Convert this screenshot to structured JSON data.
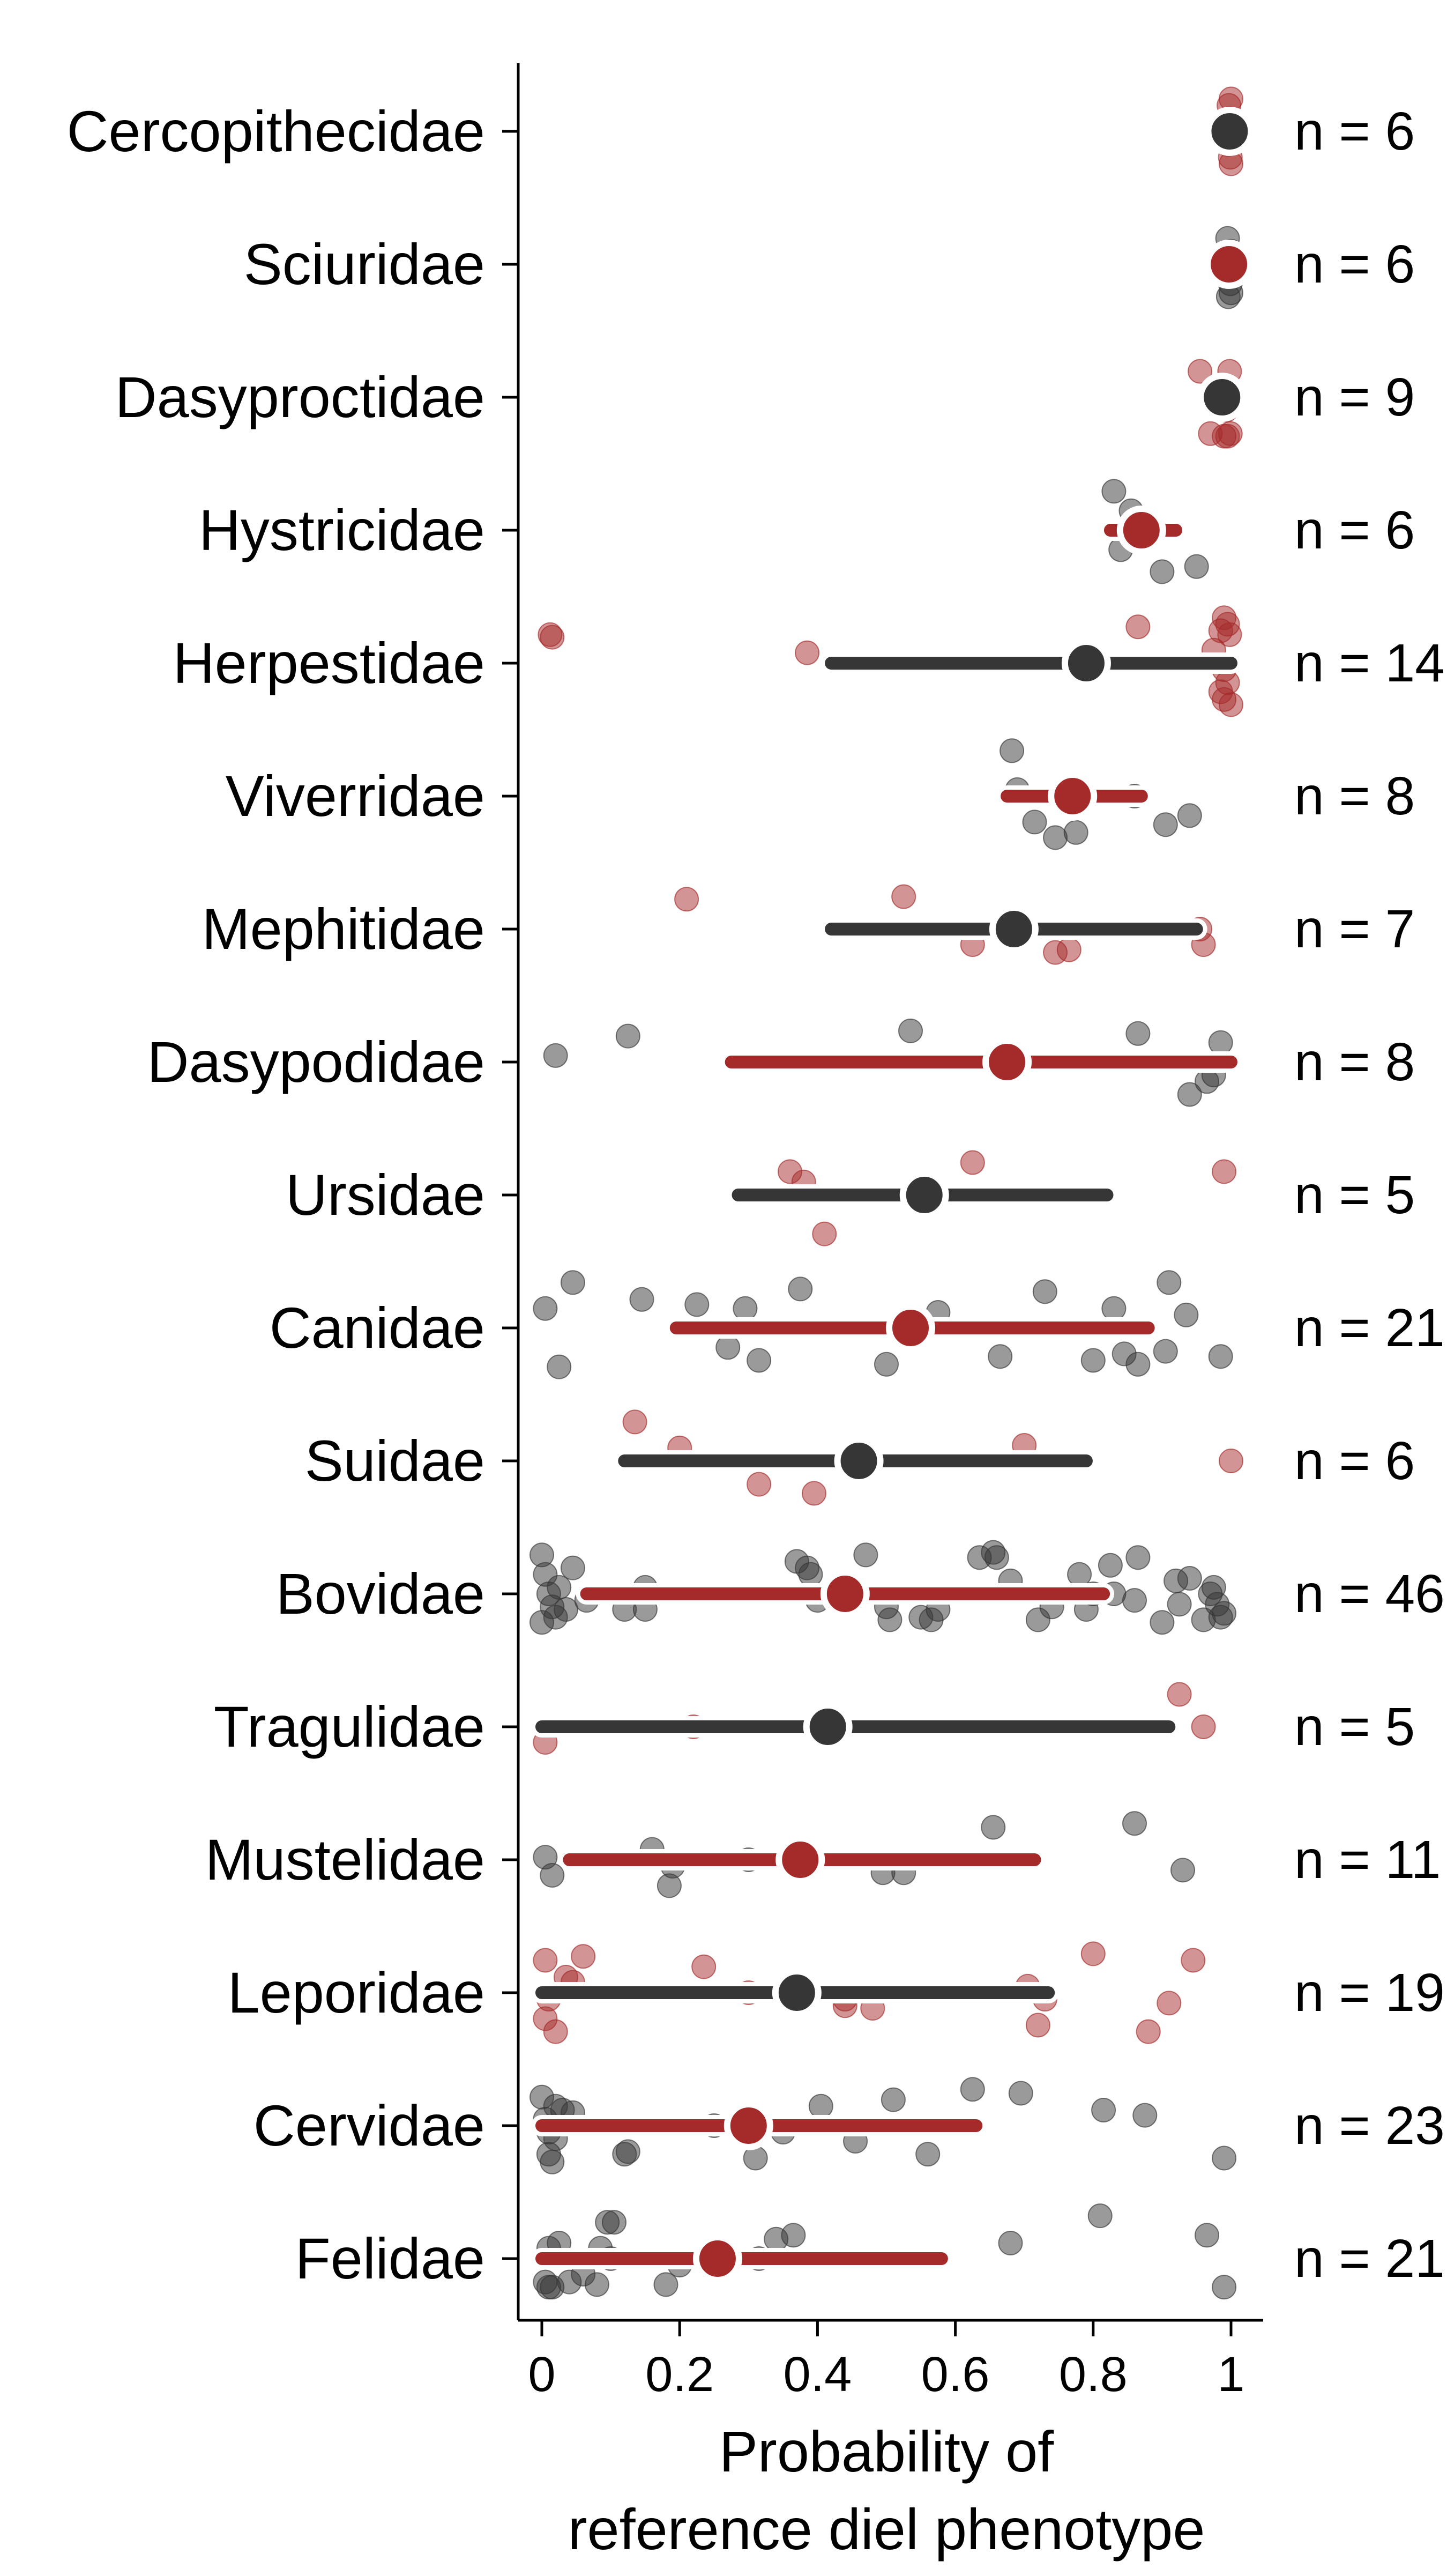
{
  "chart_data": {
    "type": "dot-interval",
    "xlabel": [
      "Probability of",
      "reference diel phenotype"
    ],
    "xlim": [
      0,
      1
    ],
    "xticks": [
      0,
      0.2,
      0.4,
      0.6,
      0.8,
      1
    ],
    "xtick_labels": [
      "0",
      "0.2",
      "0.4",
      "0.6",
      "0.8",
      "1"
    ],
    "colors": {
      "red": "#a52a2a",
      "dark": "#363636"
    },
    "rows": [
      {
        "family": "Cercopithecidae",
        "n_label": "n = 6",
        "color": "dark",
        "mean": 0.998,
        "lo": null,
        "hi": null,
        "points": [
          [
            1.0,
            -0.25
          ],
          [
            0.998,
            -0.1
          ],
          [
            0.995,
            0.1
          ],
          [
            0.999,
            0.2
          ],
          [
            1.0,
            0.25
          ],
          [
            0.997,
            -0.2
          ]
        ]
      },
      {
        "family": "Sciuridae",
        "n_label": "n = 6",
        "color": "red",
        "mean": 0.997,
        "lo": null,
        "hi": null,
        "points": [
          [
            0.995,
            -0.2
          ],
          [
            1.0,
            -0.1
          ],
          [
            0.998,
            0.05
          ],
          [
            0.999,
            0.15
          ],
          [
            1.0,
            0.22
          ],
          [
            0.996,
            0.25
          ]
        ]
      },
      {
        "family": "Dasyproctidae",
        "n_label": "n = 9",
        "color": "dark",
        "mean": 0.987,
        "lo": null,
        "hi": null,
        "points": [
          [
            0.955,
            -0.2
          ],
          [
            0.998,
            -0.2
          ],
          [
            0.975,
            -0.05
          ],
          [
            0.985,
            0.05
          ],
          [
            0.993,
            0.1
          ],
          [
            0.97,
            0.28
          ],
          [
            0.999,
            0.28
          ],
          [
            0.995,
            0.3
          ],
          [
            0.99,
            0.3
          ]
        ]
      },
      {
        "family": "Hystricidae",
        "n_label": "n = 6",
        "color": "red",
        "mean": 0.87,
        "lo": 0.825,
        "hi": 0.92,
        "points": [
          [
            0.83,
            -0.3
          ],
          [
            0.855,
            -0.15
          ],
          [
            0.84,
            0.15
          ],
          [
            0.9,
            0.32
          ],
          [
            0.95,
            0.28
          ],
          [
            0.88,
            0.0
          ]
        ]
      },
      {
        "family": "Herpestidae",
        "n_label": "n = 14",
        "color": "dark",
        "mean": 0.79,
        "lo": 0.42,
        "hi": 1.0,
        "points": [
          [
            0.012,
            -0.22
          ],
          [
            0.015,
            -0.2
          ],
          [
            0.385,
            -0.08
          ],
          [
            0.865,
            -0.28
          ],
          [
            0.99,
            -0.35
          ],
          [
            0.995,
            -0.3
          ],
          [
            0.985,
            -0.25
          ],
          [
            0.998,
            -0.22
          ],
          [
            0.975,
            -0.1
          ],
          [
            0.99,
            0.05
          ],
          [
            0.995,
            0.15
          ],
          [
            0.985,
            0.22
          ],
          [
            0.99,
            0.28
          ],
          [
            1.0,
            0.32
          ]
        ]
      },
      {
        "family": "Viverridae",
        "n_label": "n = 8",
        "color": "red",
        "mean": 0.77,
        "lo": 0.675,
        "hi": 0.87,
        "points": [
          [
            0.682,
            -0.35
          ],
          [
            0.69,
            -0.05
          ],
          [
            0.715,
            0.2
          ],
          [
            0.745,
            0.32
          ],
          [
            0.775,
            0.28
          ],
          [
            0.905,
            0.22
          ],
          [
            0.94,
            0.15
          ],
          [
            0.86,
            0.0
          ]
        ]
      },
      {
        "family": "Mephitidae",
        "n_label": "n = 7",
        "color": "dark",
        "mean": 0.685,
        "lo": 0.42,
        "hi": 0.95,
        "points": [
          [
            0.21,
            -0.23
          ],
          [
            0.525,
            -0.25
          ],
          [
            0.955,
            0.0
          ],
          [
            0.96,
            0.12
          ],
          [
            0.625,
            0.12
          ],
          [
            0.745,
            0.18
          ],
          [
            0.765,
            0.16
          ]
        ]
      },
      {
        "family": "Dasypodidae",
        "n_label": "n = 8",
        "color": "red",
        "mean": 0.675,
        "lo": 0.275,
        "hi": 1.0,
        "points": [
          [
            0.02,
            -0.05
          ],
          [
            0.125,
            -0.2
          ],
          [
            0.535,
            -0.24
          ],
          [
            0.865,
            -0.22
          ],
          [
            0.985,
            -0.15
          ],
          [
            0.975,
            0.1
          ],
          [
            0.965,
            0.15
          ],
          [
            0.94,
            0.25
          ]
        ]
      },
      {
        "family": "Ursidae",
        "n_label": "n = 5",
        "color": "dark",
        "mean": 0.555,
        "lo": 0.285,
        "hi": 0.82,
        "points": [
          [
            0.36,
            -0.18
          ],
          [
            0.38,
            -0.1
          ],
          [
            0.41,
            0.3
          ],
          [
            0.625,
            -0.25
          ],
          [
            0.99,
            -0.18
          ]
        ]
      },
      {
        "family": "Canidae",
        "n_label": "n = 21",
        "color": "red",
        "mean": 0.535,
        "lo": 0.195,
        "hi": 0.88,
        "points": [
          [
            0.005,
            -0.15
          ],
          [
            0.045,
            -0.35
          ],
          [
            0.025,
            0.3
          ],
          [
            0.145,
            -0.22
          ],
          [
            0.225,
            -0.18
          ],
          [
            0.27,
            0.15
          ],
          [
            0.295,
            -0.15
          ],
          [
            0.315,
            0.25
          ],
          [
            0.375,
            -0.3
          ],
          [
            0.5,
            0.28
          ],
          [
            0.575,
            -0.12
          ],
          [
            0.665,
            0.22
          ],
          [
            0.73,
            -0.28
          ],
          [
            0.8,
            0.25
          ],
          [
            0.83,
            -0.15
          ],
          [
            0.845,
            0.2
          ],
          [
            0.865,
            0.28
          ],
          [
            0.905,
            0.18
          ],
          [
            0.91,
            -0.35
          ],
          [
            0.935,
            -0.1
          ],
          [
            0.985,
            0.22
          ]
        ]
      },
      {
        "family": "Suidae",
        "n_label": "n = 6",
        "color": "dark",
        "mean": 0.46,
        "lo": 0.12,
        "hi": 0.79,
        "points": [
          [
            0.135,
            -0.3
          ],
          [
            0.2,
            -0.1
          ],
          [
            0.315,
            0.18
          ],
          [
            0.395,
            0.25
          ],
          [
            0.7,
            -0.12
          ],
          [
            1.0,
            0.0
          ]
        ]
      },
      {
        "family": "Bovidae",
        "n_label": "n = 46",
        "color": "red",
        "mean": 0.44,
        "lo": 0.065,
        "hi": 0.815,
        "points": [
          [
            0.0,
            -0.3
          ],
          [
            0.005,
            -0.15
          ],
          [
            0.01,
            0.0
          ],
          [
            0.015,
            0.1
          ],
          [
            0.02,
            0.18
          ],
          [
            0.0,
            0.22
          ],
          [
            0.025,
            -0.05
          ],
          [
            0.035,
            0.12
          ],
          [
            0.045,
            -0.2
          ],
          [
            0.065,
            0.05
          ],
          [
            0.12,
            0.12
          ],
          [
            0.15,
            -0.05
          ],
          [
            0.15,
            0.12
          ],
          [
            0.37,
            -0.25
          ],
          [
            0.385,
            -0.2
          ],
          [
            0.39,
            -0.15
          ],
          [
            0.4,
            0.05
          ],
          [
            0.47,
            -0.3
          ],
          [
            0.5,
            0.1
          ],
          [
            0.505,
            0.2
          ],
          [
            0.55,
            0.18
          ],
          [
            0.565,
            0.2
          ],
          [
            0.575,
            0.12
          ],
          [
            0.635,
            -0.28
          ],
          [
            0.655,
            -0.32
          ],
          [
            0.66,
            -0.28
          ],
          [
            0.68,
            -0.1
          ],
          [
            0.72,
            0.2
          ],
          [
            0.74,
            0.1
          ],
          [
            0.78,
            -0.15
          ],
          [
            0.79,
            0.12
          ],
          [
            0.8,
            0.0
          ],
          [
            0.825,
            -0.22
          ],
          [
            0.83,
            0.0
          ],
          [
            0.865,
            -0.28
          ],
          [
            0.86,
            0.05
          ],
          [
            0.9,
            0.22
          ],
          [
            0.92,
            -0.1
          ],
          [
            0.925,
            0.08
          ],
          [
            0.94,
            -0.12
          ],
          [
            0.97,
            0.0
          ],
          [
            0.98,
            0.08
          ],
          [
            0.99,
            0.15
          ],
          [
            0.975,
            -0.05
          ],
          [
            0.96,
            0.2
          ],
          [
            0.985,
            0.18
          ]
        ]
      },
      {
        "family": "Tragulidae",
        "n_label": "n = 5",
        "color": "dark",
        "mean": 0.415,
        "lo": 0.0,
        "hi": 0.91,
        "points": [
          [
            0.005,
            0.12
          ],
          [
            0.22,
            0.0
          ],
          [
            0.4,
            -0.05
          ],
          [
            0.925,
            -0.25
          ],
          [
            0.96,
            0.0
          ]
        ]
      },
      {
        "family": "Mustelidae",
        "n_label": "n = 11",
        "color": "red",
        "mean": 0.375,
        "lo": 0.04,
        "hi": 0.715,
        "points": [
          [
            0.005,
            -0.02
          ],
          [
            0.015,
            0.12
          ],
          [
            0.16,
            -0.08
          ],
          [
            0.185,
            0.2
          ],
          [
            0.19,
            0.05
          ],
          [
            0.495,
            0.1
          ],
          [
            0.525,
            0.1
          ],
          [
            0.655,
            -0.25
          ],
          [
            0.86,
            -0.28
          ],
          [
            0.93,
            0.08
          ],
          [
            0.3,
            0.0
          ]
        ]
      },
      {
        "family": "Leporidae",
        "n_label": "n = 19",
        "color": "dark",
        "mean": 0.37,
        "lo": 0.0,
        "hi": 0.735,
        "points": [
          [
            0.005,
            -0.25
          ],
          [
            0.01,
            0.05
          ],
          [
            0.005,
            0.2
          ],
          [
            0.02,
            0.3
          ],
          [
            0.035,
            -0.12
          ],
          [
            0.045,
            -0.08
          ],
          [
            0.06,
            -0.28
          ],
          [
            0.235,
            -0.2
          ],
          [
            0.44,
            0.05
          ],
          [
            0.44,
            0.1
          ],
          [
            0.48,
            0.12
          ],
          [
            0.705,
            -0.05
          ],
          [
            0.72,
            0.25
          ],
          [
            0.73,
            0.05
          ],
          [
            0.8,
            -0.3
          ],
          [
            0.88,
            0.3
          ],
          [
            0.91,
            0.08
          ],
          [
            0.945,
            -0.25
          ],
          [
            0.3,
            0.0
          ]
        ]
      },
      {
        "family": "Cervidae",
        "n_label": "n = 23",
        "color": "red",
        "mean": 0.3,
        "lo": 0.0,
        "hi": 0.63,
        "points": [
          [
            0.0,
            -0.22
          ],
          [
            0.005,
            -0.05
          ],
          [
            0.01,
            0.05
          ],
          [
            0.02,
            -0.15
          ],
          [
            0.03,
            -0.12
          ],
          [
            0.045,
            -0.1
          ],
          [
            0.01,
            0.22
          ],
          [
            0.015,
            0.28
          ],
          [
            0.02,
            0.1
          ],
          [
            0.12,
            0.22
          ],
          [
            0.125,
            0.2
          ],
          [
            0.31,
            0.25
          ],
          [
            0.405,
            -0.15
          ],
          [
            0.455,
            0.12
          ],
          [
            0.51,
            -0.2
          ],
          [
            0.56,
            0.22
          ],
          [
            0.625,
            -0.28
          ],
          [
            0.695,
            -0.25
          ],
          [
            0.815,
            -0.12
          ],
          [
            0.875,
            -0.08
          ],
          [
            0.99,
            0.25
          ],
          [
            0.25,
            0.0
          ],
          [
            0.35,
            0.05
          ]
        ]
      },
      {
        "family": "Felidae",
        "n_label": "n = 21",
        "color": "red",
        "mean": 0.255,
        "lo": 0.0,
        "hi": 0.58,
        "points": [
          [
            0.005,
            0.18
          ],
          [
            0.01,
            -0.08
          ],
          [
            0.01,
            0.22
          ],
          [
            0.015,
            0.22
          ],
          [
            0.025,
            -0.12
          ],
          [
            0.04,
            0.18
          ],
          [
            0.06,
            0.12
          ],
          [
            0.085,
            -0.08
          ],
          [
            0.095,
            -0.28
          ],
          [
            0.1,
            0.0
          ],
          [
            0.105,
            -0.28
          ],
          [
            0.08,
            0.2
          ],
          [
            0.18,
            0.2
          ],
          [
            0.34,
            -0.15
          ],
          [
            0.365,
            -0.18
          ],
          [
            0.315,
            0.0
          ],
          [
            0.68,
            -0.12
          ],
          [
            0.81,
            -0.33
          ],
          [
            0.965,
            -0.18
          ],
          [
            0.99,
            0.22
          ],
          [
            0.2,
            0.05
          ]
        ]
      }
    ]
  }
}
